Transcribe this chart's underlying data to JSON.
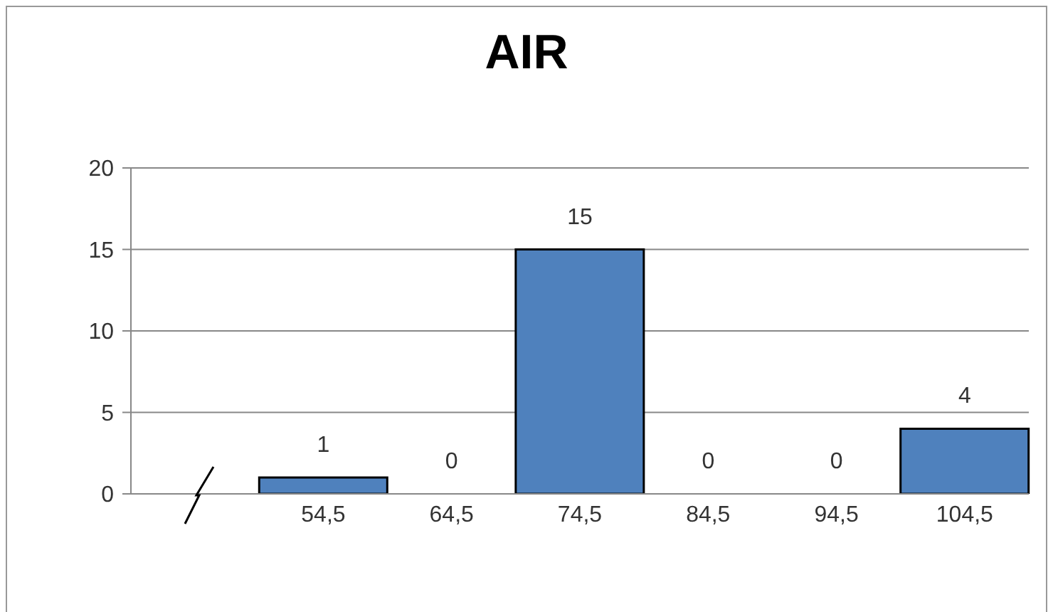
{
  "chart_data": {
    "type": "bar",
    "title": "AIR",
    "categories": [
      null,
      "54,5",
      "64,5",
      "74,5",
      "84,5",
      "94,5",
      "104,5"
    ],
    "values": [
      null,
      1,
      0,
      15,
      0,
      0,
      4
    ],
    "color": "#4f81bd",
    "ylim": [
      0,
      20
    ],
    "yticks": [
      0,
      5,
      10,
      15,
      20
    ],
    "grid": "y",
    "data_labels": true
  }
}
